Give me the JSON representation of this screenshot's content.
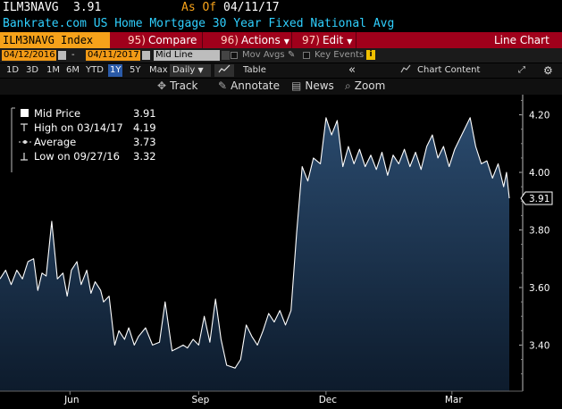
{
  "header": {
    "ticker": "ILM3NAVG",
    "price": "3.91",
    "as_of_label": "As Of",
    "as_of_date": "04/11/17",
    "title": "Bankrate.com US Home Mortgage 30 Year Fixed National Avg"
  },
  "function_bar": {
    "security": "ILM3NAVG Index",
    "compare_num": "95)",
    "compare": "Compare",
    "actions_num": "96)",
    "actions": "Actions",
    "edit_num": "97)",
    "edit": "Edit",
    "view": "Line Chart"
  },
  "date_bar": {
    "start_date": "04/12/2016",
    "dash": "-",
    "end_date": "04/11/2017",
    "study": "Mid Line",
    "mov_avgs": "Mov Avgs",
    "key_events": "Key Events",
    "info": "i"
  },
  "period_bar": {
    "periods": [
      "1D",
      "3D",
      "1M",
      "6M",
      "YTD",
      "1Y",
      "5Y",
      "Max"
    ],
    "active": "1Y",
    "frequency": "Daily",
    "table": "Table",
    "collapse": "«",
    "chart_content": "Chart Content"
  },
  "track_bar": {
    "track": "Track",
    "annotate": "Annotate",
    "news": "News",
    "zoom": "Zoom"
  },
  "colors": {
    "area_fill_top": "#2a4a6d",
    "area_fill_bottom": "#0d1b2c",
    "line": "#ffffff",
    "function_bar": "#a0001b",
    "ticker_bg": "#f6a21a",
    "title": "#2fd0ff"
  },
  "chart_data": {
    "type": "area",
    "legend": [
      {
        "label": "Mid Price",
        "value": "3.91"
      },
      {
        "label": "High on 03/14/17",
        "value": "4.19"
      },
      {
        "label": "Average",
        "value": "3.73"
      },
      {
        "label": "Low on 09/27/16",
        "value": "3.32"
      }
    ],
    "last_value_label": "3.91",
    "y_ticks": [
      "4.20",
      "4.00",
      "3.80",
      "3.60",
      "3.40"
    ],
    "ylim": [
      3.24,
      4.27
    ],
    "x_ticks": [
      "Jun",
      "Sep",
      "Dec",
      "Mar"
    ],
    "x_tick_dates": [
      "2016-06-01",
      "2016-09-01",
      "2016-12-01",
      "2017-03-01"
    ],
    "x_range": [
      "2016-04-12",
      "2017-04-11"
    ],
    "grid": false,
    "legend_position": "top-left",
    "series": [
      {
        "x": [
          "2016-04-12",
          "2016-04-16",
          "2016-04-20",
          "2016-04-24",
          "2016-04-28",
          "2016-05-02",
          "2016-05-06",
          "2016-05-09",
          "2016-05-12",
          "2016-05-15",
          "2016-05-19",
          "2016-05-23",
          "2016-05-27",
          "2016-05-30",
          "2016-06-02",
          "2016-06-06",
          "2016-06-09",
          "2016-06-13",
          "2016-06-16",
          "2016-06-19",
          "2016-06-23",
          "2016-06-25",
          "2016-06-29",
          "2016-07-03",
          "2016-07-06",
          "2016-07-10",
          "2016-07-13",
          "2016-07-17",
          "2016-07-20",
          "2016-07-25",
          "2016-07-30",
          "2016-08-04",
          "2016-08-08",
          "2016-08-13",
          "2016-08-17",
          "2016-08-21",
          "2016-08-24",
          "2016-08-28",
          "2016-09-01",
          "2016-09-05",
          "2016-09-09",
          "2016-09-13",
          "2016-09-17",
          "2016-09-21",
          "2016-09-27",
          "2016-10-01",
          "2016-10-05",
          "2016-10-09",
          "2016-10-13",
          "2016-10-17",
          "2016-10-21",
          "2016-10-25",
          "2016-10-29",
          "2016-11-02",
          "2016-11-06",
          "2016-11-10",
          "2016-11-14",
          "2016-11-18",
          "2016-11-22",
          "2016-11-27",
          "2016-12-01",
          "2016-12-05",
          "2016-12-09",
          "2016-12-13",
          "2016-12-17",
          "2016-12-21",
          "2016-12-25",
          "2016-12-29",
          "2017-01-02",
          "2017-01-06",
          "2017-01-10",
          "2017-01-14",
          "2017-01-18",
          "2017-01-22",
          "2017-01-26",
          "2017-01-30",
          "2017-02-03",
          "2017-02-07",
          "2017-02-11",
          "2017-02-15",
          "2017-02-19",
          "2017-02-23",
          "2017-02-27",
          "2017-03-03",
          "2017-03-07",
          "2017-03-14",
          "2017-03-18",
          "2017-03-22",
          "2017-03-26",
          "2017-03-30",
          "2017-04-03",
          "2017-04-07",
          "2017-04-09",
          "2017-04-11"
        ],
        "y": [
          3.63,
          3.66,
          3.61,
          3.66,
          3.63,
          3.69,
          3.7,
          3.59,
          3.65,
          3.64,
          3.83,
          3.63,
          3.65,
          3.57,
          3.66,
          3.69,
          3.61,
          3.66,
          3.58,
          3.62,
          3.59,
          3.55,
          3.57,
          3.4,
          3.45,
          3.42,
          3.46,
          3.4,
          3.43,
          3.46,
          3.4,
          3.41,
          3.55,
          3.38,
          3.39,
          3.4,
          3.39,
          3.42,
          3.4,
          3.5,
          3.41,
          3.56,
          3.42,
          3.33,
          3.32,
          3.35,
          3.47,
          3.43,
          3.4,
          3.45,
          3.51,
          3.48,
          3.52,
          3.47,
          3.52,
          3.79,
          4.02,
          3.97,
          4.05,
          4.03,
          4.19,
          4.13,
          4.18,
          4.02,
          4.09,
          4.03,
          4.08,
          4.02,
          4.06,
          4.01,
          4.07,
          3.99,
          4.06,
          4.03,
          4.08,
          4.02,
          4.07,
          4.01,
          4.09,
          4.13,
          4.05,
          4.09,
          4.02,
          4.08,
          4.12,
          4.19,
          4.09,
          4.03,
          4.04,
          3.98,
          4.03,
          3.95,
          4.0,
          3.91
        ]
      }
    ]
  }
}
